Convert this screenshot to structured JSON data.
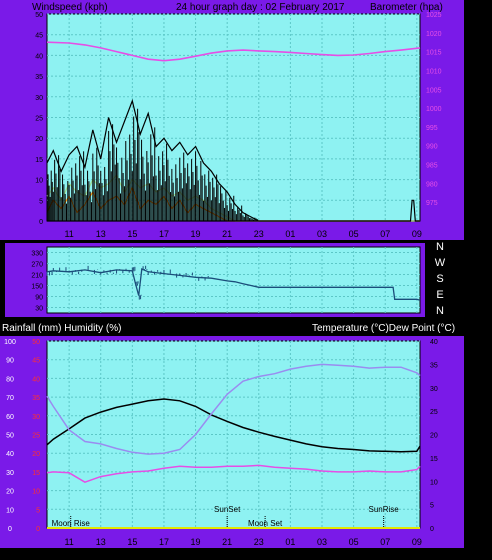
{
  "colors": {
    "frame": "#7a1ae8",
    "plot": "#8ef2f2",
    "grid": "#5cc7c7",
    "black": "#000000",
    "magenta": "#e64ee6",
    "orange": "#ff8c00",
    "lightgreen": "#9bd98a",
    "navy": "#1a4d7a",
    "violet": "#9a8cf0",
    "red": "#ff3030",
    "yellow": "#e6e600"
  },
  "chart_data": [
    {
      "type": "line",
      "title": "24 hour graph day : 02 February 2017",
      "ylabel": "Windspeed (kph)",
      "y2label": "Barometer (hpa)",
      "ylim": [
        0,
        50
      ],
      "yticks": [
        "0",
        "5",
        "10",
        "15",
        "20",
        "25",
        "30",
        "35",
        "40",
        "45",
        "50"
      ],
      "y2lim": [
        970,
        1025
      ],
      "y2ticks": [
        "975",
        "980",
        "985",
        "990",
        "995",
        "1000",
        "1005",
        "1010",
        "1015",
        "1020",
        "1025"
      ],
      "xlim": [
        9.6,
        33.2
      ],
      "xticks": [
        "11",
        "13",
        "15",
        "17",
        "19",
        "21",
        "23",
        "01",
        "03",
        "05",
        "07",
        "09"
      ],
      "grid": true,
      "series": [
        {
          "axis": "y2",
          "x": [
            9.6,
            11,
            12,
            13,
            14,
            15,
            16,
            17,
            18,
            19,
            20,
            21,
            22,
            23,
            24,
            25,
            26,
            27,
            28,
            29,
            30,
            31,
            32,
            33.2
          ],
          "values": [
            1017.5,
            1017.3,
            1016.8,
            1016,
            1015,
            1014,
            1013,
            1012.6,
            1013,
            1013.8,
            1014.6,
            1015.2,
            1015.4,
            1015.2,
            1015,
            1014.8,
            1014.5,
            1014.2,
            1014,
            1014.1,
            1014.5,
            1015,
            1015.4,
            1016
          ]
        },
        {
          "x": [
            9.6,
            10,
            10.5,
            11,
            11.5,
            12,
            12.5,
            13,
            13.5,
            14,
            14.5,
            15,
            15.5,
            16,
            16.5,
            17,
            17.5,
            18,
            18.5,
            19,
            19.5,
            20,
            20.5,
            21,
            21.5,
            22,
            22.5,
            23,
            33.2
          ],
          "values": [
            14,
            17,
            12,
            16,
            18,
            13,
            22,
            15,
            25,
            19,
            24,
            29,
            21,
            26,
            18,
            20,
            17,
            19,
            16,
            18,
            14,
            12,
            9,
            7,
            4,
            2,
            1,
            0,
            0
          ]
        },
        {
          "x": [
            9.6,
            10,
            10.5,
            11,
            11.5,
            12,
            12.5,
            13,
            13.5,
            14,
            14.5,
            15,
            15.5,
            16,
            16.5,
            17,
            17.5,
            18,
            18.5,
            19,
            19.5,
            20,
            20.5,
            21,
            21.5,
            22,
            33.2
          ],
          "values": [
            2,
            5,
            3,
            6,
            2,
            4,
            7,
            3,
            5,
            6,
            4,
            8,
            3,
            5,
            4,
            6,
            3,
            5,
            2,
            4,
            3,
            2,
            1,
            0,
            0,
            0,
            0
          ]
        },
        {
          "x": [
            9.6,
            10,
            10.5,
            11,
            11.5,
            12,
            12.5,
            13,
            13.5,
            14,
            14.5,
            15,
            15.5,
            16,
            16.5,
            17,
            17.5,
            18,
            18.5,
            19,
            19.5,
            20,
            20.5,
            21,
            21.5,
            22,
            33.2
          ],
          "values": [
            6,
            8,
            5,
            9,
            7,
            6,
            10,
            8,
            9,
            11,
            7,
            10,
            8,
            9,
            7,
            8,
            6,
            7,
            5,
            6,
            5,
            3,
            2,
            1,
            0,
            0,
            0
          ]
        },
        {
          "x": [
            9.6,
            32.6,
            32.7,
            32.8,
            32.9,
            33.2
          ],
          "values": [
            0,
            0,
            5,
            5,
            0,
            0
          ]
        }
      ]
    },
    {
      "type": "line",
      "yticks": [
        "330",
        "270",
        "210",
        "150",
        "90",
        "30"
      ],
      "ylim": [
        0,
        360
      ],
      "y2ticks": [
        "N",
        "W",
        "S",
        "E",
        "N"
      ],
      "xlim": [
        9.6,
        33.2
      ],
      "grid": true,
      "series": [
        {
          "x": [
            9.6,
            10,
            11,
            12,
            13,
            14,
            15,
            15.2,
            15.4,
            15.6,
            16,
            17,
            18,
            19,
            20,
            21,
            21.5,
            22,
            22.5,
            23,
            24,
            25,
            26,
            27,
            28,
            29,
            30,
            31,
            31.5,
            31.6,
            32,
            33,
            33.2
          ],
          "values": [
            225,
            230,
            225,
            235,
            220,
            235,
            230,
            160,
            95,
            240,
            225,
            215,
            205,
            195,
            190,
            175,
            170,
            160,
            150,
            140,
            140,
            140,
            140,
            140,
            140,
            140,
            140,
            140,
            140,
            75,
            75,
            75,
            70
          ]
        }
      ]
    },
    {
      "type": "line",
      "ylabel": "Rainfall (mm)  Humidity (%)",
      "y2label": "Temperature (°C)Dew Point (°C)",
      "ylim": [
        0,
        100
      ],
      "yticks": [
        "0",
        "10",
        "20",
        "30",
        "40",
        "50",
        "60",
        "70",
        "80",
        "90",
        "100"
      ],
      "y_inner_ticks": [
        "0",
        "5",
        "10",
        "15",
        "20",
        "25",
        "30",
        "35",
        "40",
        "45",
        "50"
      ],
      "y2lim": [
        0,
        40
      ],
      "y2ticks": [
        "0",
        "5",
        "10",
        "15",
        "20",
        "25",
        "30",
        "35",
        "40"
      ],
      "xlim": [
        9.6,
        33.2
      ],
      "xticks": [
        "11",
        "13",
        "15",
        "17",
        "19",
        "21",
        "23",
        "01",
        "03",
        "05",
        "07",
        "09"
      ],
      "grid": true,
      "annotations": [
        "SunSet",
        "SunRise",
        "Moon Rise",
        "Moon Set"
      ],
      "series": [
        {
          "axis": "y2",
          "x": [
            9.6,
            10,
            11,
            12,
            13,
            14,
            15,
            16,
            17,
            18,
            19,
            20,
            21,
            22,
            23,
            24,
            25,
            26,
            27,
            28,
            29,
            30,
            31,
            32,
            33,
            33.2
          ],
          "values": [
            17.8,
            19,
            21.2,
            23.5,
            24.8,
            25.8,
            26.5,
            27.2,
            27.6,
            27.2,
            26,
            24.2,
            22.8,
            21.5,
            20.5,
            19.6,
            18.8,
            18,
            17.4,
            17,
            16.8,
            16.5,
            16.4,
            16.3,
            16.4,
            17.5
          ]
        },
        {
          "axis": "y2",
          "x": [
            9.6,
            10,
            11,
            12,
            13,
            14,
            15,
            16,
            17,
            18,
            19,
            20,
            21,
            22,
            23,
            24,
            25,
            26,
            27,
            28,
            29,
            30,
            31,
            32,
            33,
            33.2
          ],
          "values": [
            28.2,
            26,
            21,
            18.5,
            18,
            17,
            16.2,
            15.8,
            16,
            16.8,
            20,
            24.4,
            28.6,
            31.4,
            32.4,
            33,
            34,
            34.6,
            35,
            34.8,
            34.6,
            34.2,
            34.4,
            34.4,
            33.2,
            32.6
          ]
        },
        {
          "axis": "y2",
          "x": [
            9.6,
            10,
            11,
            12,
            13,
            14,
            15,
            16,
            17,
            18,
            19,
            20,
            21,
            22,
            23,
            24,
            25,
            26,
            27,
            28,
            29,
            30,
            31,
            32,
            33,
            33.2
          ],
          "values": [
            11.8,
            12,
            11.8,
            9.8,
            11,
            11.6,
            12,
            12.2,
            12.8,
            13.2,
            13,
            13,
            13.2,
            13.2,
            13.4,
            13,
            12.8,
            12.6,
            12.2,
            12,
            12,
            12.2,
            12,
            12,
            12.5,
            13.2
          ]
        },
        {
          "x": [
            9.6,
            33.2
          ],
          "values": [
            0,
            0
          ]
        }
      ]
    }
  ]
}
